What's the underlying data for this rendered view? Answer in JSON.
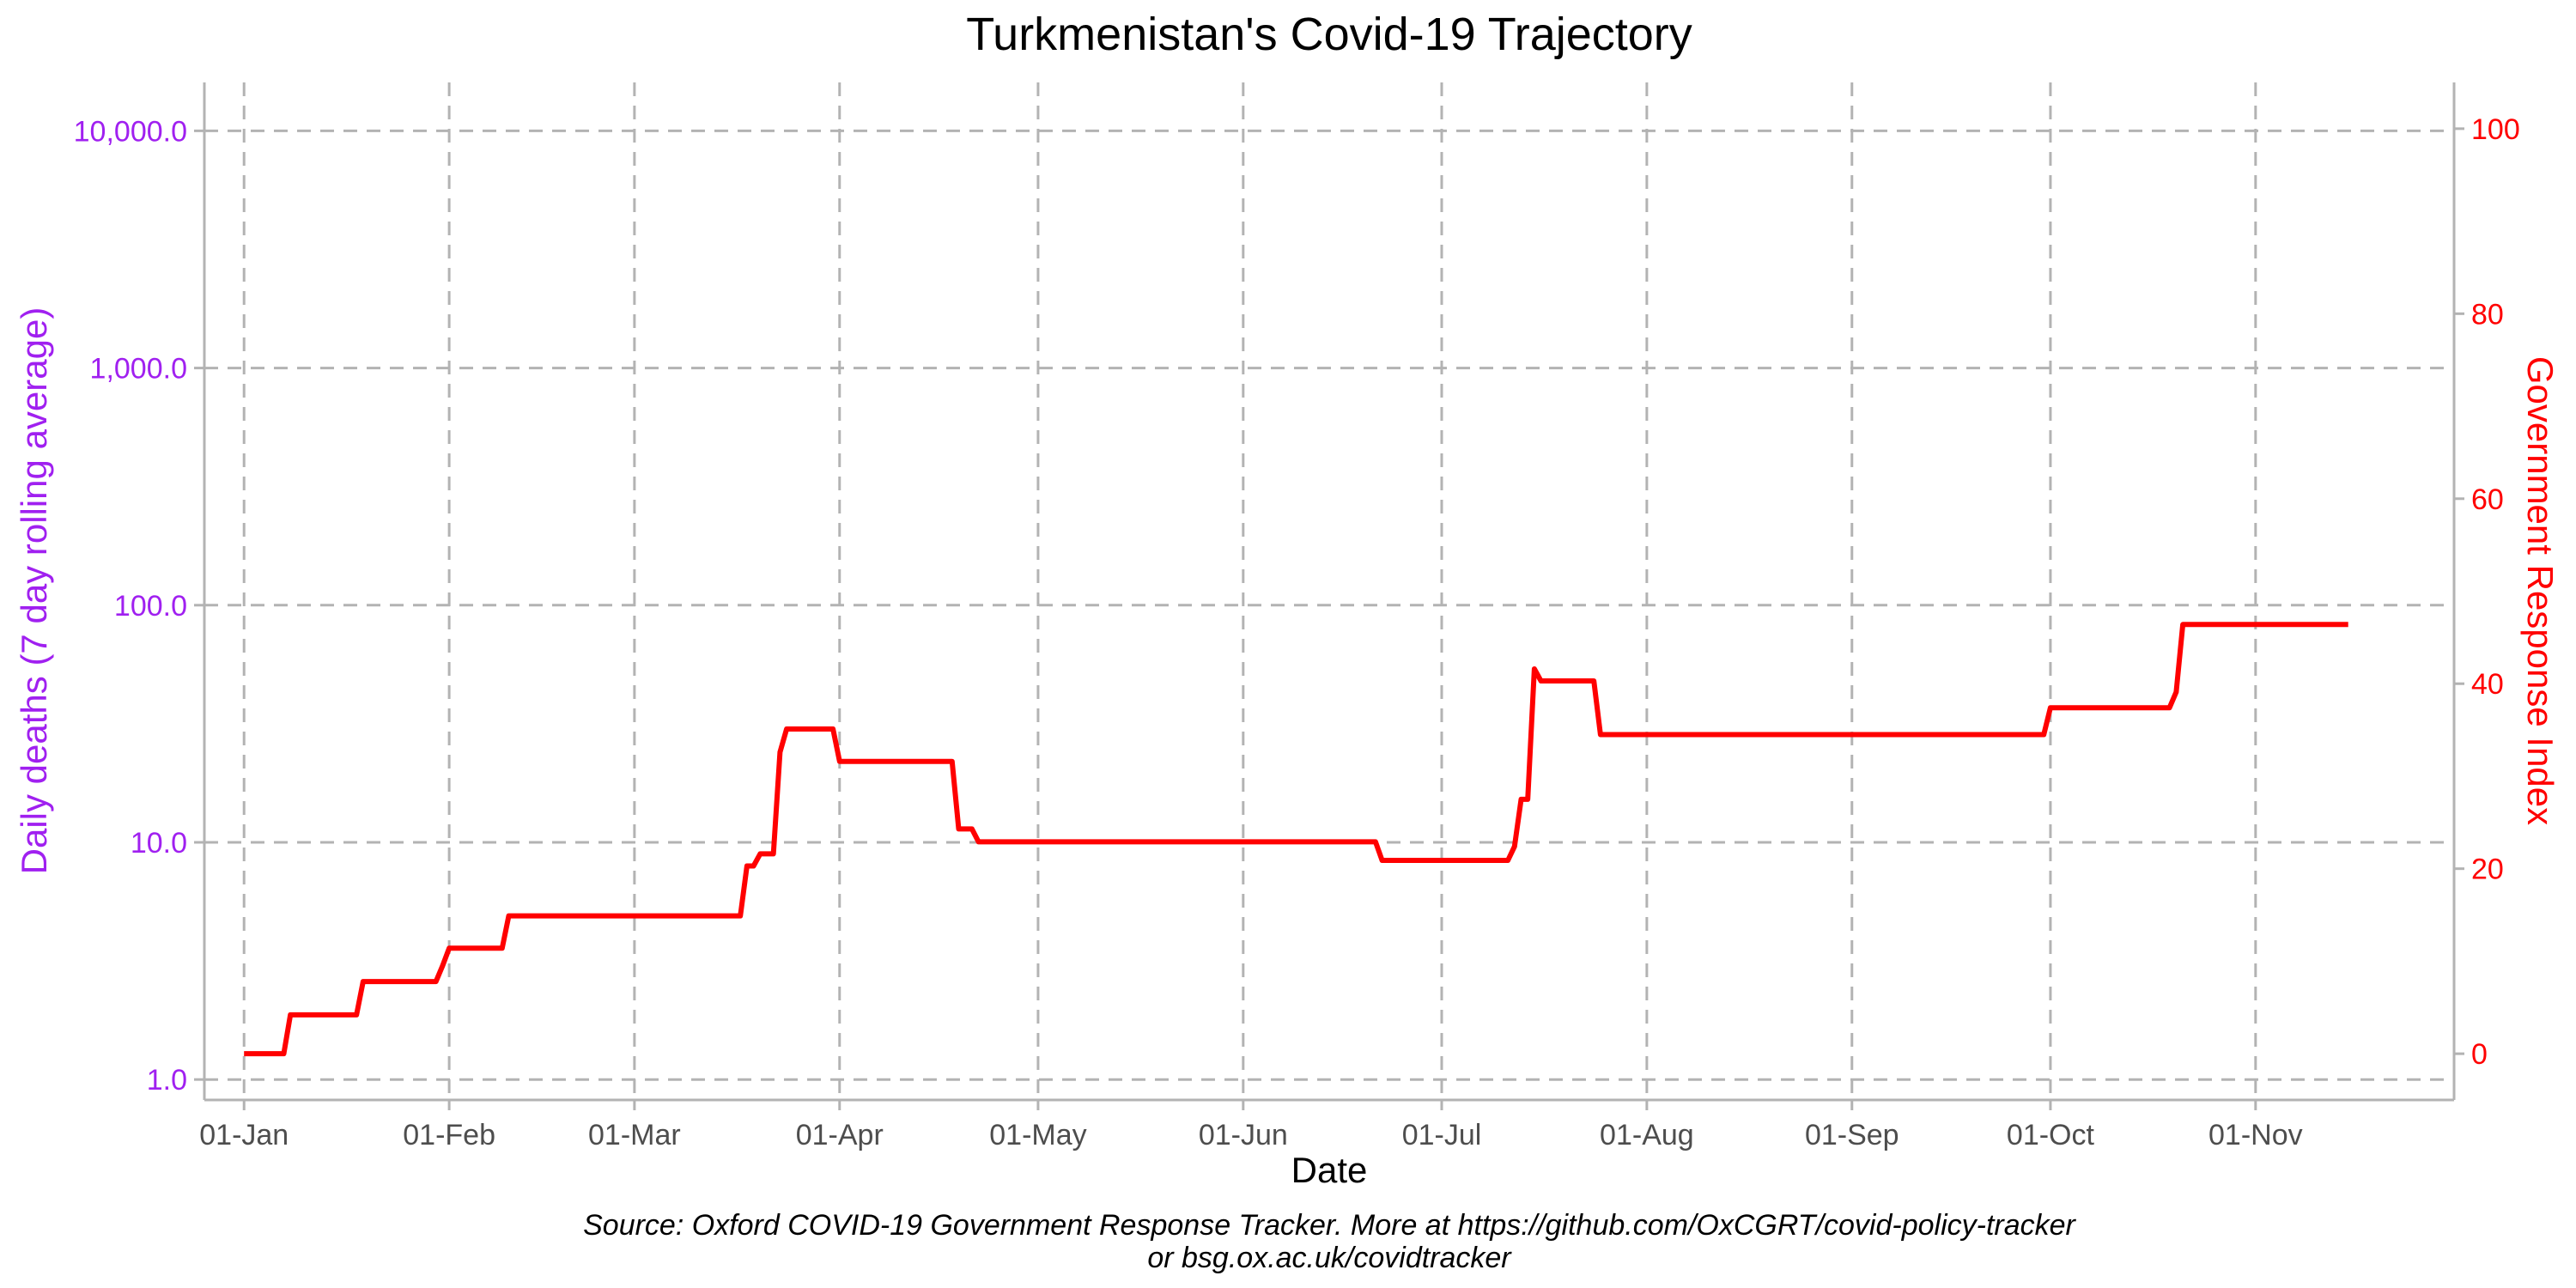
{
  "chart_data": {
    "type": "line",
    "title": "Turkmenistan's Covid-19 Trajectory",
    "xlabel": "Date",
    "ylabel_left": "Daily deaths (7 day rolling average)",
    "ylabel_right": "Government Response Index",
    "caption_lines": [
      "Source: Oxford COVID-19 Government Response Tracker. More at https://github.com/OxCGRT/covid-policy-tracker",
      "or bsg.ox.ac.uk/covidtracker"
    ],
    "x_range": [
      "2020-12-26",
      "2021-12-01"
    ],
    "x_ticks": [
      {
        "date": "2021-01-01",
        "label": "01-Jan"
      },
      {
        "date": "2021-02-01",
        "label": "01-Feb"
      },
      {
        "date": "2021-03-01",
        "label": "01-Mar"
      },
      {
        "date": "2021-04-01",
        "label": "01-Apr"
      },
      {
        "date": "2021-05-01",
        "label": "01-May"
      },
      {
        "date": "2021-06-01",
        "label": "01-Jun"
      },
      {
        "date": "2021-07-01",
        "label": "01-Jul"
      },
      {
        "date": "2021-08-01",
        "label": "01-Aug"
      },
      {
        "date": "2021-09-01",
        "label": "01-Sep"
      },
      {
        "date": "2021-10-01",
        "label": "01-Oct"
      },
      {
        "date": "2021-11-01",
        "label": "01-Nov"
      }
    ],
    "y_left": {
      "scale": "log",
      "range": [
        0.82,
        16000
      ],
      "ticks": [
        {
          "value": 1,
          "label": "1.0"
        },
        {
          "value": 10,
          "label": "10.0"
        },
        {
          "value": 100,
          "label": "100.0"
        },
        {
          "value": 1000,
          "label": "1,000.0"
        },
        {
          "value": 10000,
          "label": "10,000.0"
        }
      ],
      "color": "#a020f0"
    },
    "y_right": {
      "scale": "linear",
      "range": [
        -5,
        105
      ],
      "ticks": [
        {
          "value": 0,
          "label": "0"
        },
        {
          "value": 20,
          "label": "20"
        },
        {
          "value": 40,
          "label": "40"
        },
        {
          "value": 60,
          "label": "60"
        },
        {
          "value": 80,
          "label": "80"
        },
        {
          "value": 100,
          "label": "100"
        }
      ],
      "color": "#ff0000"
    },
    "grid": true,
    "series": [
      {
        "name": "Government Response Index",
        "axis": "right",
        "color": "#ff0000",
        "points": [
          [
            "2021-01-01",
            0
          ],
          [
            "2021-01-07",
            0
          ],
          [
            "2021-01-08",
            4.2
          ],
          [
            "2021-01-18",
            4.2
          ],
          [
            "2021-01-19",
            7.8
          ],
          [
            "2021-01-30",
            7.8
          ],
          [
            "2021-01-31",
            9.5
          ],
          [
            "2021-02-01",
            11.4
          ],
          [
            "2021-02-09",
            11.4
          ],
          [
            "2021-02-10",
            14.9
          ],
          [
            "2021-03-17",
            14.9
          ],
          [
            "2021-03-18",
            20.3
          ],
          [
            "2021-03-19",
            20.3
          ],
          [
            "2021-03-20",
            21.6
          ],
          [
            "2021-03-22",
            21.6
          ],
          [
            "2021-03-23",
            32.6
          ],
          [
            "2021-03-24",
            35.1
          ],
          [
            "2021-03-31",
            35.1
          ],
          [
            "2021-04-01",
            31.6
          ],
          [
            "2021-04-18",
            31.6
          ],
          [
            "2021-04-19",
            24.3
          ],
          [
            "2021-04-21",
            24.3
          ],
          [
            "2021-04-22",
            22.9
          ],
          [
            "2021-06-21",
            22.9
          ],
          [
            "2021-06-22",
            20.9
          ],
          [
            "2021-07-11",
            20.9
          ],
          [
            "2021-07-12",
            22.4
          ],
          [
            "2021-07-13",
            27.5
          ],
          [
            "2021-07-14",
            27.5
          ],
          [
            "2021-07-15",
            41.6
          ],
          [
            "2021-07-16",
            40.3
          ],
          [
            "2021-07-24",
            40.3
          ],
          [
            "2021-07-25",
            34.5
          ],
          [
            "2021-09-30",
            34.5
          ],
          [
            "2021-10-01",
            37.4
          ],
          [
            "2021-10-19",
            37.4
          ],
          [
            "2021-10-20",
            39.1
          ],
          [
            "2021-10-21",
            46.4
          ],
          [
            "2021-11-15",
            46.4
          ]
        ]
      }
    ]
  }
}
